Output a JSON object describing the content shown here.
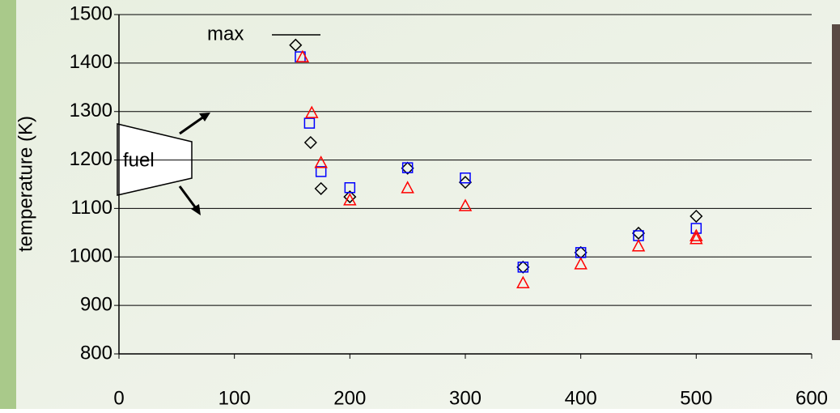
{
  "chart_data": {
    "type": "scatter",
    "y_label": "temperature (K)",
    "annotations": [
      "max",
      "fuel"
    ],
    "xlim": [
      0,
      600
    ],
    "xticks": [
      0,
      100,
      200,
      300,
      400,
      500,
      600
    ],
    "ylim": [
      800,
      1500
    ],
    "yticks": [
      800,
      900,
      1000,
      1100,
      1200,
      1300,
      1400,
      1500
    ],
    "grid": true,
    "series": [
      {
        "color": "#000000",
        "marker": "diamond",
        "x": [
          153,
          166,
          175,
          200,
          250,
          300,
          350,
          400,
          450,
          500
        ],
        "values": [
          1437,
          1236,
          1141,
          1124,
          1183,
          1154,
          979,
          1009,
          1049,
          1084
        ]
      },
      {
        "color": "#0000ff",
        "marker": "square",
        "x": [
          157,
          165,
          175,
          200,
          250,
          300,
          350,
          400,
          450,
          500
        ],
        "values": [
          1413,
          1276,
          1176,
          1143,
          1184,
          1163,
          979,
          1009,
          1044,
          1059
        ]
      },
      {
        "color": "#ff0000",
        "marker": "triangle",
        "x": [
          159,
          167,
          175,
          200,
          250,
          300,
          350,
          400,
          450,
          500,
          500
        ],
        "values": [
          1411,
          1296,
          1193,
          1116,
          1141,
          1104,
          945,
          984,
          1021,
          1036,
          1042
        ]
      }
    ]
  }
}
